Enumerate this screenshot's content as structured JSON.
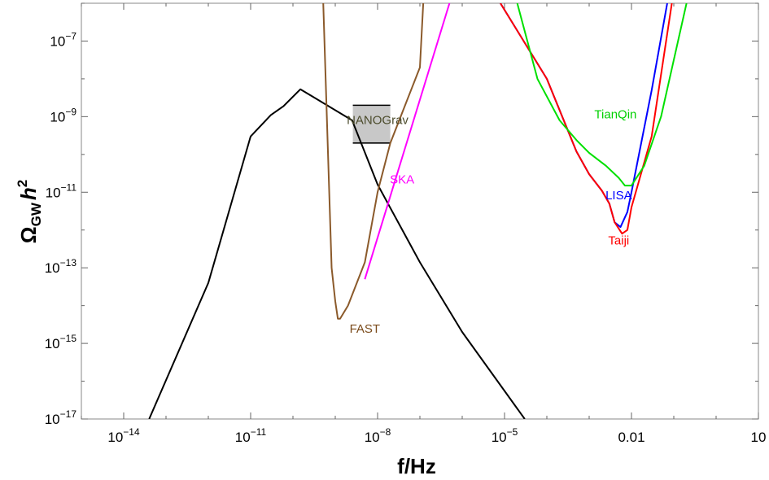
{
  "chart_data": {
    "type": "line",
    "xscale": "log",
    "yscale": "log",
    "xlabel": "f/Hz",
    "ylabel": {
      "base": "Ω",
      "sub": "GW",
      "rest": "h",
      "sup": "2"
    },
    "xlim": [
      1e-15,
      10
    ],
    "ylim": [
      1e-17,
      1e-06
    ],
    "x_ticks": [
      {
        "value": 1e-14,
        "base": "10",
        "exp": "−14"
      },
      {
        "value": 1e-11,
        "base": "10",
        "exp": "−11"
      },
      {
        "value": 1e-08,
        "base": "10",
        "exp": "−8"
      },
      {
        "value": 1e-05,
        "base": "10",
        "exp": "−5"
      },
      {
        "value": 0.01,
        "base": "0.01",
        "exp": ""
      },
      {
        "value": 10,
        "base": "10",
        "exp": ""
      }
    ],
    "y_ticks": [
      {
        "value": 1e-17,
        "base": "10",
        "exp": "−17"
      },
      {
        "value": 1e-15,
        "base": "10",
        "exp": "−15"
      },
      {
        "value": 1e-13,
        "base": "10",
        "exp": "−13"
      },
      {
        "value": 1e-11,
        "base": "10",
        "exp": "−11"
      },
      {
        "value": 1e-09,
        "base": "10",
        "exp": "−9"
      },
      {
        "value": 1e-07,
        "base": "10",
        "exp": "−7"
      }
    ],
    "series": [
      {
        "key": "signal",
        "color": "#000000",
        "points": [
          [
            4e-14,
            1e-17
          ],
          [
            1e-12,
            4e-14
          ],
          [
            1e-11,
            3e-10
          ],
          [
            3e-11,
            1.1e-09
          ],
          [
            6e-11,
            1.9e-09
          ],
          [
            1.5e-10,
            5.3e-09
          ],
          [
            2.5e-09,
            8e-10
          ],
          [
            1e-08,
            1.6e-11
          ],
          [
            1e-07,
            1.4e-13
          ],
          [
            1e-06,
            2e-15
          ],
          [
            3e-05,
            1e-17
          ]
        ]
      },
      {
        "name": "FAST",
        "label": "FAST",
        "color": "#8B5A2B",
        "points": [
          [
            5.2e-10,
            1e-06
          ],
          [
            8.2e-10,
            1e-13
          ],
          [
            1e-09,
            1.3e-14
          ],
          [
            1.15e-09,
            4.5e-15
          ],
          [
            1.3e-09,
            4.5e-15
          ],
          [
            2e-09,
            1e-14
          ],
          [
            5e-09,
            1.4e-13
          ],
          [
            1e-08,
            1e-11
          ],
          [
            2e-08,
            2e-10
          ],
          [
            1e-07,
            2e-08
          ],
          [
            1.2e-07,
            1e-06
          ]
        ]
      },
      {
        "name": "SKA",
        "label": "SKA",
        "color": "#FF00FF",
        "points": [
          [
            5e-09,
            5e-14
          ],
          [
            5e-07,
            1e-06
          ]
        ]
      },
      {
        "name": "LISA",
        "label": "LISA",
        "color": "#0000FF",
        "points": [
          [
            8e-06,
            1e-06
          ],
          [
            0.0001,
            1e-08
          ],
          [
            0.0005,
            1.2e-10
          ],
          [
            0.001,
            3e-11
          ],
          [
            0.002,
            1.1e-11
          ],
          [
            0.003,
            5e-12
          ],
          [
            0.004,
            1.6e-12
          ],
          [
            0.0055,
            1.2e-12
          ],
          [
            0.008,
            3e-12
          ],
          [
            0.01,
            1e-11
          ],
          [
            0.03,
            5e-09
          ],
          [
            0.07,
            1e-06
          ]
        ]
      },
      {
        "name": "Taiji",
        "label": "Taiji",
        "color": "#FF0000",
        "points": [
          [
            8e-06,
            1e-06
          ],
          [
            0.0001,
            1e-08
          ],
          [
            0.0005,
            1.2e-10
          ],
          [
            0.001,
            3e-11
          ],
          [
            0.002,
            1.1e-11
          ],
          [
            0.003,
            5e-12
          ],
          [
            0.004,
            1.6e-12
          ],
          [
            0.006,
            8e-13
          ],
          [
            0.008,
            1e-12
          ],
          [
            0.01,
            4e-12
          ],
          [
            0.03,
            3e-10
          ],
          [
            0.09,
            1e-06
          ]
        ]
      },
      {
        "name": "TianQin",
        "label": "TianQin",
        "color": "#00E000",
        "points": [
          [
            2e-05,
            1e-06
          ],
          [
            6e-05,
            1e-08
          ],
          [
            0.0002,
            8e-10
          ],
          [
            0.0005,
            2.4e-10
          ],
          [
            0.001,
            1.1e-10
          ],
          [
            0.0025,
            5e-11
          ],
          [
            0.005,
            2.4e-11
          ],
          [
            0.007,
            1.5e-11
          ],
          [
            0.01,
            1.5e-11
          ],
          [
            0.02,
            5e-11
          ],
          [
            0.05,
            1e-09
          ],
          [
            0.2,
            1e-06
          ]
        ]
      }
    ],
    "bands": [
      {
        "name": "NANOGrav",
        "label": "NANOGrav",
        "x_range": [
          2.6e-09,
          2e-08
        ],
        "y_range": [
          2e-10,
          2e-09
        ],
        "fill": "#c8c8c8"
      }
    ],
    "labels": [
      {
        "text": "NANOGrav",
        "x": 1e-08,
        "y": 6.4e-10,
        "color": "#4B4B2B"
      },
      {
        "text": "FAST",
        "x": 5e-09,
        "y": 1.9e-15,
        "color": "#7A4A1A"
      },
      {
        "text": "SKA",
        "x": 3.8e-08,
        "y": 1.7e-11,
        "color": "#FF00FF"
      },
      {
        "text": "LISA",
        "x": 0.005,
        "y": 6.5e-12,
        "color": "#0000FF"
      },
      {
        "text": "Taiji",
        "x": 0.005,
        "y": 4.1e-13,
        "color": "#FF0000"
      },
      {
        "text": "TianQin",
        "x": 0.0042,
        "y": 9e-10,
        "color": "#00D000"
      }
    ]
  }
}
